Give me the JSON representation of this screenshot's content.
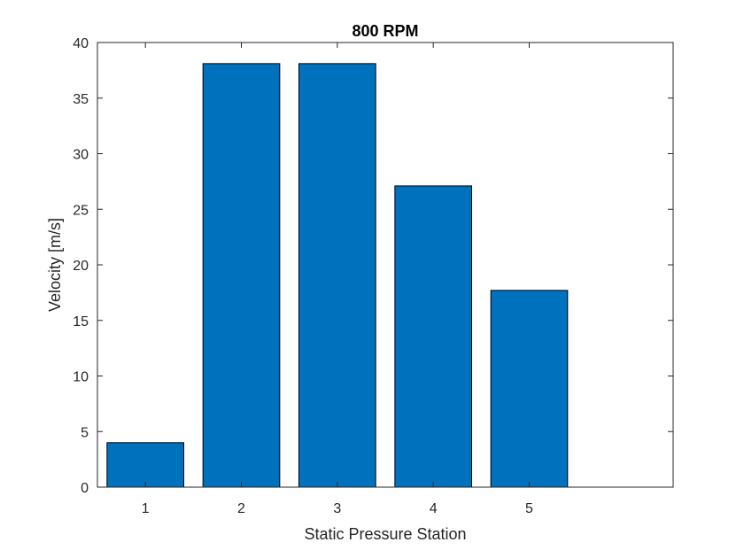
{
  "chart_data": {
    "type": "bar",
    "title": "800 RPM",
    "xlabel": "Static Pressure Station",
    "ylabel": "Velocity [m/s]",
    "categories": [
      "1",
      "2",
      "3",
      "4",
      "5"
    ],
    "values": [
      4.0,
      38.1,
      38.1,
      27.1,
      17.7
    ],
    "ylim": [
      0,
      40
    ],
    "yticks": [
      0,
      5,
      10,
      15,
      20,
      25,
      30,
      35,
      40
    ],
    "grid": false,
    "bar_color": "#0072BD",
    "bar_edge_color": "#000000"
  }
}
